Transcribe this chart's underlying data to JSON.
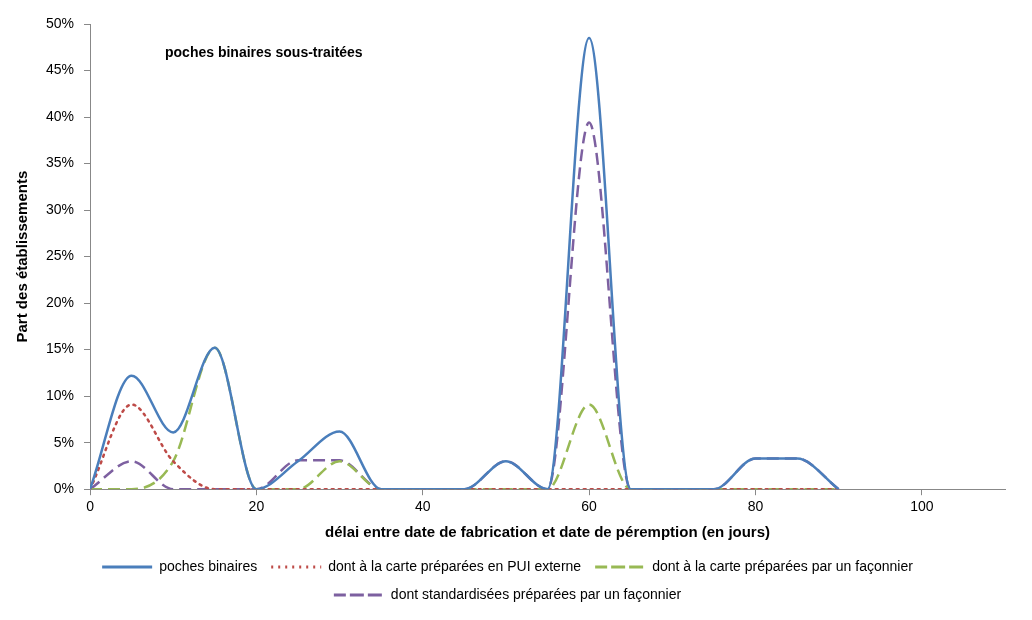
{
  "chart_data": {
    "type": "line",
    "title": "poches binaires sous-traitées",
    "xlabel": "délai entre date de fabrication et date de péremption (en jours)",
    "ylabel": "Part des établissements",
    "x": [
      0,
      5,
      10,
      15,
      20,
      25,
      30,
      35,
      40,
      45,
      50,
      55,
      60,
      65,
      70,
      75,
      80,
      85,
      90
    ],
    "xlim": [
      0,
      110
    ],
    "xticks": [
      0,
      20,
      40,
      60,
      80,
      100
    ],
    "ylim": [
      0,
      50
    ],
    "yticks": [
      {
        "value": 0,
        "label": "0%"
      },
      {
        "value": 5,
        "label": "5%"
      },
      {
        "value": 10,
        "label": "10%"
      },
      {
        "value": 15,
        "label": "15%"
      },
      {
        "value": 20,
        "label": "20%"
      },
      {
        "value": 25,
        "label": "25%"
      },
      {
        "value": 30,
        "label": "30%"
      },
      {
        "value": 35,
        "label": "35%"
      },
      {
        "value": 40,
        "label": "40%"
      },
      {
        "value": 45,
        "label": "45%"
      },
      {
        "value": 50,
        "label": "50%"
      }
    ],
    "legend": "bottom",
    "marker": "none",
    "grid": false,
    "series": [
      {
        "name": "poches binaires",
        "color": "#4a7ebb",
        "line_style": "solid",
        "values": [
          0,
          12.2,
          6.1,
          15.2,
          0,
          3.0,
          6.2,
          0,
          0,
          0,
          3.0,
          0,
          48.5,
          0,
          0,
          0,
          3.3,
          3.3,
          0
        ]
      },
      {
        "name": "dont à la carte préparées en PUI externe",
        "color": "#be4b48",
        "line_style": "dotted",
        "values": [
          0,
          9.1,
          3.0,
          0,
          0,
          0,
          0,
          0,
          0,
          0,
          0,
          0,
          0,
          0,
          0,
          0,
          0,
          0,
          0
        ]
      },
      {
        "name": "dont à la carte préparées par un façonnier",
        "color": "#98b954",
        "line_style": "dashed",
        "values": [
          0,
          0,
          3.0,
          15.2,
          0,
          0,
          3.0,
          0,
          0,
          0,
          0,
          0,
          9.1,
          0,
          0,
          0,
          0,
          0,
          0
        ]
      },
      {
        "name": "dont standardisées préparées par un façonnier",
        "color": "#7d60a0",
        "line_style": "dashed",
        "values": [
          0,
          3.0,
          0,
          0,
          0,
          3.1,
          3.1,
          0,
          0,
          0,
          3.0,
          0,
          39.4,
          0,
          0,
          0,
          3.3,
          3.3,
          0
        ]
      }
    ]
  }
}
